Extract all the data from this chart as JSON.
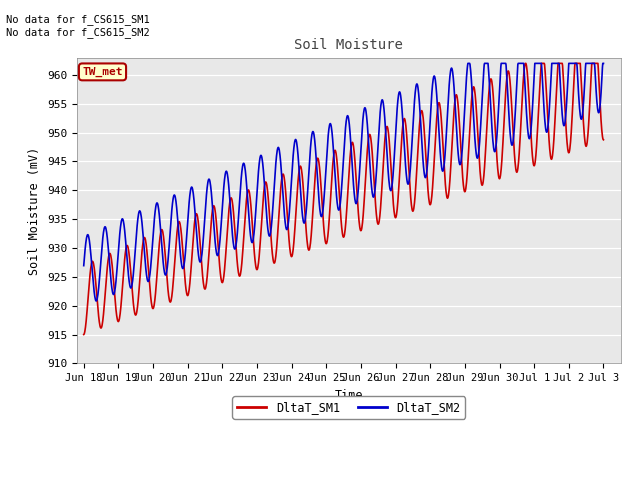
{
  "title": "Soil Moisture",
  "xlabel": "Time",
  "ylabel": "Soil Moisture (mV)",
  "ylim": [
    910,
    963
  ],
  "yticks": [
    910,
    915,
    920,
    925,
    930,
    935,
    940,
    945,
    950,
    955,
    960
  ],
  "x_labels": [
    "Jun 18",
    "Jun 19",
    "Jun 20",
    "Jun 21",
    "Jun 22",
    "Jun 23",
    "Jun 24",
    "Jun 25",
    "Jun 26",
    "Jun 27",
    "Jun 28",
    "Jun 29",
    "Jun 30",
    "Jul 1",
    "Jul 2",
    "Jul 3"
  ],
  "annotation_text": "No data for f_CS615_SM1\nNo data for f_CS615_SM2",
  "legend_box_text": "TW_met",
  "legend_box_color": "#ffffcc",
  "legend_box_edge": "#aa0000",
  "fig_bg_color": "#ffffff",
  "plot_bg_color": "#e8e8e8",
  "grid_color": "#ffffff",
  "sm1_color": "#cc0000",
  "sm2_color": "#0000cc",
  "sm1_label": "DltaT_SM1",
  "sm2_label": "DltaT_SM2",
  "linewidth": 1.2
}
